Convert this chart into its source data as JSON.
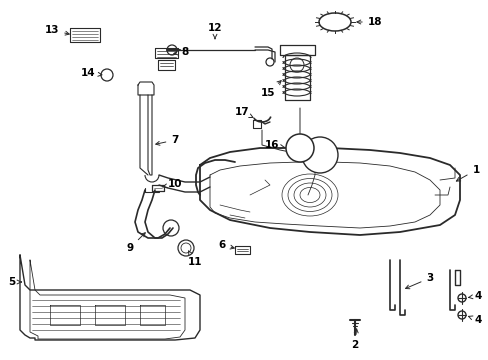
{
  "bg_color": "#ffffff",
  "line_color": "#2a2a2a",
  "label_color": "#000000",
  "label_fontsize": 7.5,
  "fig_width": 4.89,
  "fig_height": 3.6,
  "dpi": 100
}
